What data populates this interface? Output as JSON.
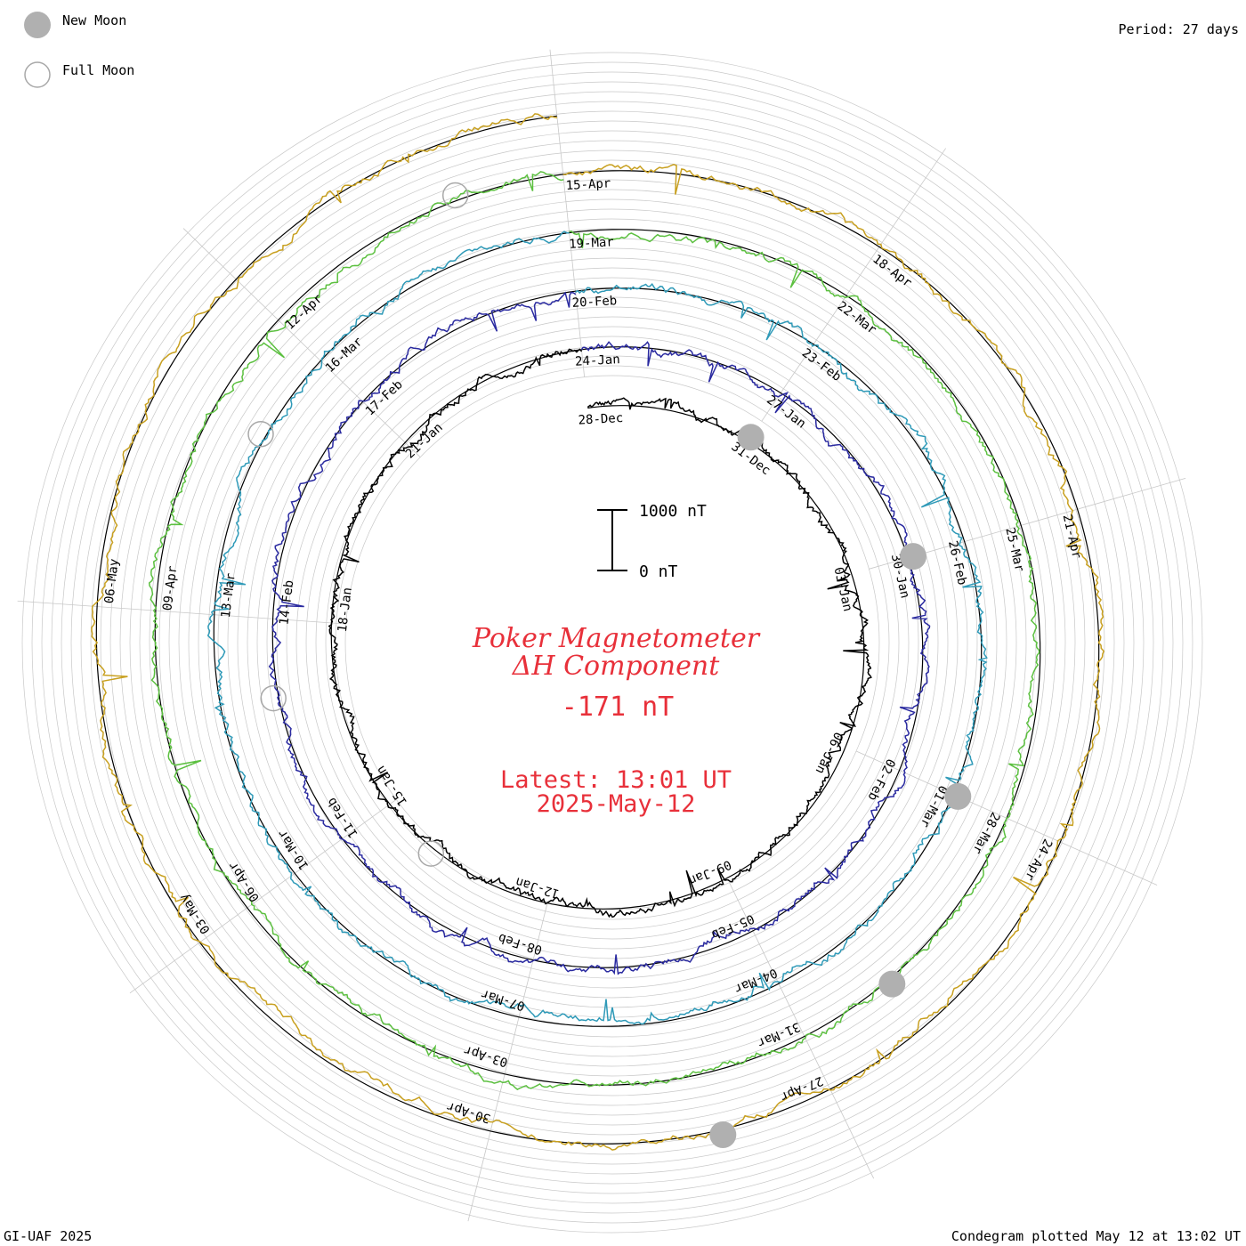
{
  "legend": {
    "new_moon": "New Moon",
    "full_moon": "Full Moon",
    "new_moon_color": "#b0b0b0",
    "full_moon_color": "#b0b0b0"
  },
  "period_label": "Period: 27 days",
  "credit": "GI-UAF 2025",
  "plotted_label": "Condegram plotted May 12 at 13:02 UT",
  "center": {
    "title_line1": "Poker Magnetometer",
    "title_line2": "ΔH Component",
    "current_value": "-171 nT",
    "latest_line1": "Latest: 13:01 UT",
    "latest_line2": "2025-May-12",
    "text_color": "#e8303a"
  },
  "scale_bar": {
    "top_label": "1000 nT",
    "bottom_label": "0 nT"
  },
  "chart_data": {
    "type": "line",
    "layout": "spiral condegram (polar, 27-day rotation)",
    "period_days": 27,
    "units": "nT",
    "start_date": "2024-12-27",
    "end_date": "2025-05-12",
    "rotations": [
      {
        "color": "#000000",
        "labels": [
          "28-Dec",
          "31-Dec",
          "03-Jan",
          "06-Jan",
          "09-Jan",
          "12-Jan",
          "15-Jan",
          "18-Jan",
          "21-Jan"
        ]
      },
      {
        "color": "#2a2aa0",
        "labels": [
          "24-Jan",
          "27-Jan",
          "30-Jan",
          "02-Feb",
          "05-Feb",
          "08-Feb",
          "11-Feb",
          "14-Feb",
          "17-Feb"
        ]
      },
      {
        "color": "#2f9ab8",
        "labels": [
          "20-Feb",
          "23-Feb",
          "26-Feb",
          "01-Mar",
          "04-Mar",
          "07-Mar",
          "10-Mar",
          "13-Mar",
          "16-Mar"
        ]
      },
      {
        "color": "#5cc040",
        "labels": [
          "19-Mar",
          "22-Mar",
          "25-Mar",
          "28-Mar",
          "31-Mar",
          "03-Apr",
          "06-Apr",
          "09-Apr",
          "12-Apr"
        ]
      },
      {
        "color": "#c8a020",
        "labels": [
          "15-Apr",
          "18-Apr",
          "21-Apr",
          "24-Apr",
          "27-Apr",
          "30-Apr",
          "03-May",
          "06-May"
        ]
      }
    ],
    "new_moons": [
      "2024-12-30",
      "2025-01-29",
      "2025-02-28",
      "2025-03-29",
      "2025-04-27"
    ],
    "full_moons": [
      "2025-01-13",
      "2025-02-12",
      "2025-03-14",
      "2025-04-13"
    ]
  }
}
